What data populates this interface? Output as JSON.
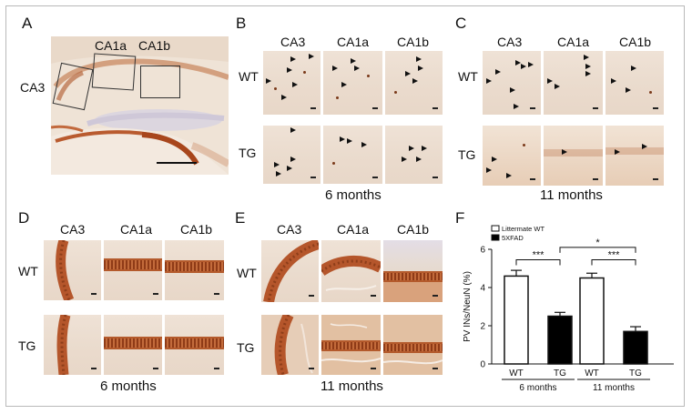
{
  "panels": {
    "A": {
      "letter": "A",
      "regions": [
        "CA1a",
        "CA1b",
        "CA3"
      ]
    },
    "B": {
      "letter": "B",
      "columns": [
        "CA3",
        "CA1a",
        "CA1b"
      ],
      "rows": [
        "WT",
        "TG"
      ],
      "caption": "6 months"
    },
    "C": {
      "letter": "C",
      "columns": [
        "CA3",
        "CA1a",
        "CA1b"
      ],
      "rows": [
        "WT",
        "TG"
      ],
      "caption": "11 months"
    },
    "D": {
      "letter": "D",
      "columns": [
        "CA3",
        "CA1a",
        "CA1b"
      ],
      "rows": [
        "WT",
        "TG"
      ],
      "caption": "6 months"
    },
    "E": {
      "letter": "E",
      "columns": [
        "CA3",
        "CA1a",
        "CA1b"
      ],
      "rows": [
        "WT",
        "TG"
      ],
      "caption": "11 months"
    },
    "F": {
      "letter": "F"
    }
  },
  "chart_data": {
    "type": "bar",
    "ylabel": "PV INs/NeuN (%)",
    "ylim": [
      0,
      6
    ],
    "yticks": [
      0,
      2,
      4,
      6
    ],
    "legend": {
      "placement": "top-left",
      "entries": [
        "Littermate WT",
        "5XFAD"
      ]
    },
    "series": [
      {
        "name": "Littermate WT",
        "color": "#ffffff"
      },
      {
        "name": "5XFAD",
        "color": "#000000"
      }
    ],
    "bars": [
      {
        "label": "WT",
        "group": "6 months",
        "series": "Littermate WT",
        "value": 4.6,
        "error": 0.3
      },
      {
        "label": "TG",
        "group": "6 months",
        "series": "5XFAD",
        "value": 2.5,
        "error": 0.2
      },
      {
        "label": "WT",
        "group": "11 months",
        "series": "Littermate WT",
        "value": 4.5,
        "error": 0.25
      },
      {
        "label": "TG",
        "group": "11 months",
        "series": "5XFAD",
        "value": 1.7,
        "error": 0.25
      }
    ],
    "groups": [
      "6 months",
      "11 months"
    ],
    "significance": [
      {
        "from": 0,
        "to": 1,
        "label": "***"
      },
      {
        "from": 1,
        "to": 3,
        "label": "*"
      },
      {
        "from": 2,
        "to": 3,
        "label": "***"
      }
    ]
  }
}
